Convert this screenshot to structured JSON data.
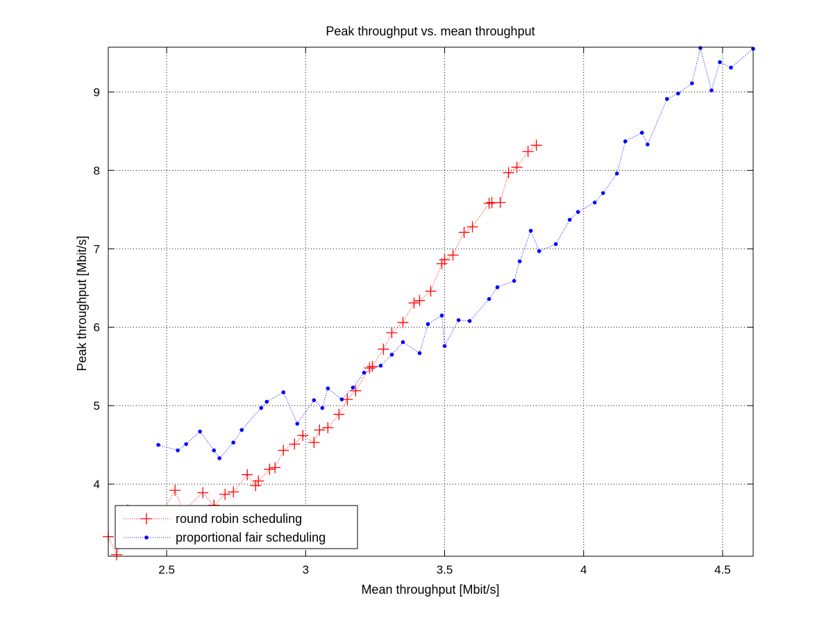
{
  "chart_data": {
    "type": "line",
    "title": "Peak throughput vs. mean throughput",
    "xlabel": "Mean throughput [Mbit/s]",
    "ylabel": "Peak throughput [Mbit/s]",
    "xlim": [
      2.29,
      4.61
    ],
    "ylim": [
      3.08,
      9.57
    ],
    "xticks": [
      2.5,
      3,
      3.5,
      4,
      4.5
    ],
    "xtick_labels": [
      "2.5",
      "3",
      "3.5",
      "4",
      "4.5"
    ],
    "yticks": [
      4,
      5,
      6,
      7,
      8,
      9
    ],
    "ytick_labels": [
      "4",
      "5",
      "6",
      "7",
      "8",
      "9"
    ],
    "grid": true,
    "legend_position": "bottom-left",
    "series": [
      {
        "name": "round robin scheduling",
        "color": "#ff0000",
        "marker": "plus",
        "linestyle": "dotted",
        "x": [
          2.29,
          2.32,
          2.36,
          2.42,
          2.47,
          2.53,
          2.56,
          2.63,
          2.67,
          2.71,
          2.74,
          2.79,
          2.82,
          2.83,
          2.87,
          2.89,
          2.92,
          2.96,
          2.99,
          3.03,
          3.05,
          3.08,
          3.12,
          3.15,
          3.18,
          3.23,
          3.24,
          3.28,
          3.31,
          3.35,
          3.39,
          3.41,
          3.45,
          3.49,
          3.5,
          3.53,
          3.57,
          3.6,
          3.66,
          3.67,
          3.7,
          3.73,
          3.76,
          3.8,
          3.83
        ],
        "y": [
          3.33,
          3.1,
          3.67,
          3.6,
          3.55,
          3.92,
          3.66,
          3.89,
          3.73,
          3.87,
          3.9,
          4.12,
          3.98,
          4.04,
          4.19,
          4.21,
          4.43,
          4.51,
          4.62,
          4.53,
          4.69,
          4.72,
          4.89,
          5.08,
          5.19,
          5.48,
          5.5,
          5.72,
          5.93,
          6.06,
          6.31,
          6.34,
          6.46,
          6.81,
          6.86,
          6.92,
          7.21,
          7.28,
          7.58,
          7.59,
          7.59,
          7.97,
          8.04,
          8.24,
          8.32
        ]
      },
      {
        "name": "proportional fair scheduling",
        "color": "#0000ff",
        "marker": "dot",
        "linestyle": "dotted",
        "x": [
          2.47,
          2.54,
          2.57,
          2.62,
          2.67,
          2.69,
          2.74,
          2.77,
          2.84,
          2.86,
          2.92,
          2.97,
          3.03,
          3.06,
          3.08,
          3.13,
          3.17,
          3.21,
          3.27,
          3.31,
          3.35,
          3.41,
          3.44,
          3.49,
          3.5,
          3.55,
          3.59,
          3.66,
          3.69,
          3.75,
          3.77,
          3.81,
          3.84,
          3.9,
          3.95,
          3.98,
          4.04,
          4.07,
          4.12,
          4.15,
          4.21,
          4.23,
          4.3,
          4.34,
          4.39,
          4.42,
          4.46,
          4.49,
          4.53,
          4.61
        ],
        "y": [
          4.5,
          4.43,
          4.51,
          4.67,
          4.43,
          4.33,
          4.53,
          4.69,
          4.97,
          5.05,
          5.17,
          4.77,
          5.07,
          4.97,
          5.22,
          5.08,
          5.23,
          5.42,
          5.51,
          5.65,
          5.81,
          5.67,
          6.04,
          6.15,
          5.76,
          6.09,
          6.08,
          6.36,
          6.51,
          6.59,
          6.84,
          7.23,
          6.97,
          7.06,
          7.37,
          7.47,
          7.59,
          7.71,
          7.96,
          8.37,
          8.48,
          8.33,
          8.91,
          8.98,
          9.11,
          9.56,
          9.02,
          9.38,
          9.31,
          9.55
        ]
      }
    ]
  }
}
